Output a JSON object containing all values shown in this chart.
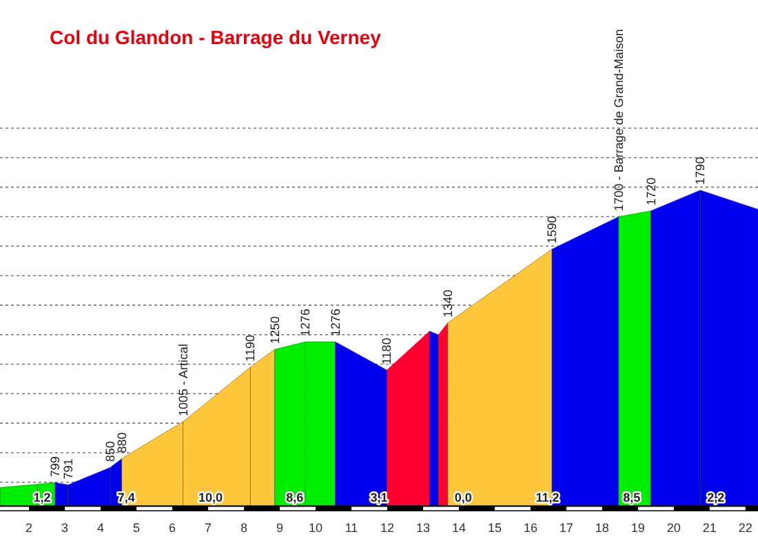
{
  "chart_data": {
    "type": "area",
    "title": "Col du Glandon - Barrage du Verney",
    "series": [
      {
        "color": "#00ee00",
        "x": [
          1.19,
          2.23
        ],
        "values": [
          782,
          793
        ],
        "value_labels": [
          null,
          null
        ]
      },
      {
        "color": "#00ee00",
        "x": [
          2.23,
          2.73
        ],
        "values": [
          793,
          799
        ],
        "value_labels": [
          null,
          "799"
        ]
      },
      {
        "color": "#0000ee",
        "x": [
          2.73,
          3.09
        ],
        "values": [
          799,
          791
        ],
        "value_labels": [
          null,
          "791"
        ]
      },
      {
        "color": "#0000ee",
        "x": [
          3.09,
          4.27
        ],
        "values": [
          791,
          850
        ],
        "value_labels": [
          null,
          "850"
        ]
      },
      {
        "color": "#0000ee",
        "x": [
          4.27,
          4.59
        ],
        "values": [
          850,
          880
        ],
        "value_labels": [
          null,
          "880"
        ]
      },
      {
        "color": "#ffc83c",
        "x": [
          4.59,
          6.3
        ],
        "values": [
          880,
          1005
        ],
        "value_labels": [
          null,
          "1005 - Artical"
        ]
      },
      {
        "color": "#ffc83c",
        "x": [
          6.3,
          8.18
        ],
        "values": [
          1005,
          1190
        ],
        "value_labels": [
          null,
          "1190"
        ]
      },
      {
        "color": "#ffc83c",
        "x": [
          8.18,
          8.86
        ],
        "values": [
          1190,
          1250
        ],
        "value_labels": [
          null,
          "1250"
        ]
      },
      {
        "color": "#00ee00",
        "x": [
          8.86,
          9.72
        ],
        "values": [
          1250,
          1276
        ],
        "value_labels": [
          null,
          "1276"
        ]
      },
      {
        "color": "#00ee00",
        "x": [
          9.72,
          10.55
        ],
        "values": [
          1276,
          1276
        ],
        "value_labels": [
          null,
          "1276"
        ]
      },
      {
        "color": "#0000ee",
        "x": [
          10.55,
          11.99
        ],
        "values": [
          1276,
          1180
        ],
        "value_labels": [
          null,
          "1180"
        ]
      },
      {
        "color": "#ff0033",
        "x": [
          11.99,
          13.18
        ],
        "values": [
          1180,
          1312
        ],
        "value_labels": [
          null,
          null
        ]
      },
      {
        "color": "#0000ee",
        "x": [
          13.18,
          13.43
        ],
        "values": [
          1312,
          1300
        ],
        "value_labels": [
          null,
          null
        ]
      },
      {
        "color": "#ff0033",
        "x": [
          13.43,
          13.69
        ],
        "values": [
          1300,
          1340
        ],
        "value_labels": [
          null,
          "1340"
        ]
      },
      {
        "color": "#ffc83c",
        "x": [
          13.69,
          16.6
        ],
        "values": [
          1340,
          1590
        ],
        "value_labels": [
          null,
          "1590"
        ]
      },
      {
        "color": "#0000ee",
        "x": [
          16.6,
          18.46
        ],
        "values": [
          1590,
          1700
        ],
        "value_labels": [
          null,
          "1700 - Barrage de Grand-Maison"
        ]
      },
      {
        "color": "#00ee00",
        "x": [
          18.46,
          19.36
        ],
        "values": [
          1700,
          1720
        ],
        "value_labels": [
          null,
          "1720"
        ]
      },
      {
        "color": "#0000ee",
        "x": [
          19.36,
          20.74
        ],
        "values": [
          1720,
          1790
        ],
        "value_labels": [
          null,
          "1790"
        ]
      },
      {
        "color": "#0000ee",
        "x": [
          20.74,
          22.35
        ],
        "values": [
          1790,
          1725
        ],
        "value_labels": [
          null,
          null
        ]
      }
    ],
    "annotations": [
      "1,2",
      "7,4",
      "10,0",
      "8,6",
      "3,1",
      "0,0",
      "11,2",
      "8,5",
      "2,2"
    ],
    "xlim": [
      1.19,
      22.35
    ],
    "ylim": [
      720,
      2000
    ],
    "xticks": [
      2,
      3,
      4,
      5,
      6,
      7,
      8,
      9,
      10,
      11,
      12,
      13,
      14,
      15,
      16,
      17,
      18,
      19,
      20,
      21,
      22
    ],
    "yticks": [
      {
        "value": 800,
        "label": null
      },
      {
        "value": 900,
        "label": null
      },
      {
        "value": 1000,
        "label": null
      },
      {
        "value": 1100,
        "label": null
      },
      {
        "value": 1200,
        "label": null
      },
      {
        "value": 1300,
        "label": null
      },
      {
        "value": 1400,
        "label": null
      },
      {
        "value": 1500,
        "label": null
      },
      {
        "value": 1600,
        "label": null
      },
      {
        "value": 1700,
        "label": null
      },
      {
        "value": 1800,
        "label": null
      },
      {
        "value": 1900,
        "label": null
      },
      {
        "value": 2000,
        "label": null
      }
    ],
    "grid": "y",
    "tick_labels": "x"
  }
}
